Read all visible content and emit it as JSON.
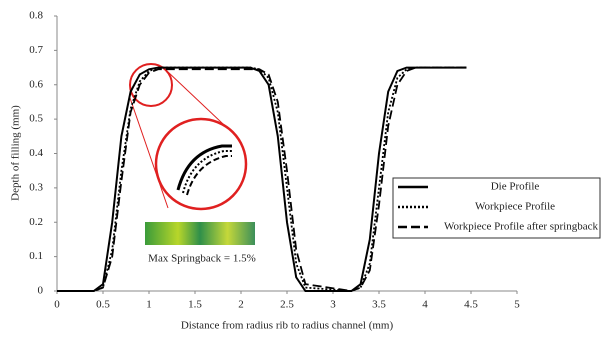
{
  "chart_data": {
    "type": "line",
    "xlabel": "Distance from radius rib to radius channel (mm)",
    "ylabel": "Depth of filling (mm)",
    "annotation": "Max Springback = 1.5%",
    "x": [
      0,
      0.4,
      0.5,
      0.6,
      0.7,
      0.8,
      0.9,
      1.0,
      1.1,
      2.1,
      2.2,
      2.3,
      2.4,
      2.5,
      2.6,
      2.7,
      3.2,
      3.3,
      3.4,
      3.5,
      3.6,
      3.7,
      3.8,
      3.9,
      4.45
    ],
    "series": [
      {
        "name": "Die Profile",
        "color": "#000000",
        "style": "solid",
        "values": [
          0,
          0,
          0.02,
          0.2,
          0.45,
          0.58,
          0.63,
          0.645,
          0.65,
          0.65,
          0.64,
          0.6,
          0.45,
          0.2,
          0.04,
          0,
          0,
          0.02,
          0.15,
          0.4,
          0.58,
          0.64,
          0.65,
          0.65,
          0.65
        ]
      },
      {
        "name": "Workpiece Profile",
        "color": "#000000",
        "style": "dotted",
        "values": [
          0,
          0,
          0.01,
          0.12,
          0.35,
          0.53,
          0.61,
          0.64,
          0.65,
          0.65,
          0.645,
          0.62,
          0.52,
          0.3,
          0.08,
          0.01,
          0,
          0.01,
          0.08,
          0.3,
          0.52,
          0.62,
          0.645,
          0.65,
          0.65
        ]
      },
      {
        "name": "Workpiece Profile after springback",
        "color": "#000000",
        "style": "dashed",
        "values": [
          0,
          0,
          0.01,
          0.1,
          0.32,
          0.52,
          0.6,
          0.635,
          0.645,
          0.645,
          0.645,
          0.63,
          0.55,
          0.35,
          0.12,
          0.02,
          0,
          0.01,
          0.06,
          0.25,
          0.48,
          0.6,
          0.64,
          0.65,
          0.65
        ]
      }
    ],
    "xlim": [
      0,
      5
    ],
    "xticks": [
      0,
      0.5,
      1,
      1.5,
      2,
      2.5,
      3,
      3.5,
      4,
      4.5,
      5
    ],
    "ylim": [
      0,
      0.8
    ],
    "yticks": [
      0,
      0.1,
      0.2,
      0.3,
      0.4,
      0.5,
      0.6,
      0.7,
      0.8
    ],
    "grid": false,
    "legend": "right"
  }
}
